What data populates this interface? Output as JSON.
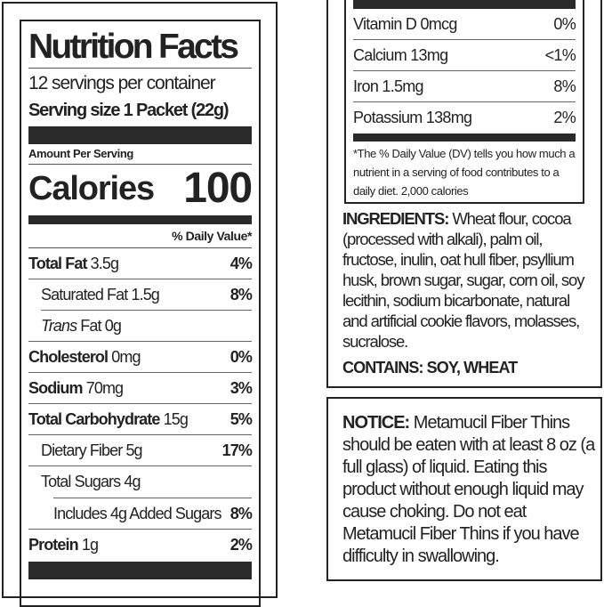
{
  "nutrition_facts": {
    "title": "Nutrition Facts",
    "servings": "12 servings per container",
    "serving_size": "Serving size 1 Packet (22g)",
    "amount_per_serving": "Amount Per Serving",
    "calories_label": "Calories",
    "calories_value": "100",
    "daily_value_header": "% Daily Value*",
    "rows": [
      {
        "name": "Total Fat",
        "amount": "3.5g",
        "dv": "4%"
      },
      {
        "name": "Saturated Fat",
        "amount": "1.5g",
        "dv": "8%"
      },
      {
        "name": "Trans",
        "name_rest": "Fat",
        "amount": "0g",
        "dv": ""
      },
      {
        "name": "Cholesterol",
        "amount": "0mg",
        "dv": "0%"
      },
      {
        "name": "Sodium",
        "amount": "70mg",
        "dv": "3%"
      },
      {
        "name": "Total Carbohydrate",
        "amount": "15g",
        "dv": "5%"
      },
      {
        "name": "Dietary Fiber",
        "amount": "5g",
        "dv": "17%"
      },
      {
        "name": "Total Sugars",
        "amount": "4g",
        "dv": ""
      },
      {
        "name": "Includes 4g Added Sugars",
        "amount": "",
        "dv": "8%"
      },
      {
        "name": "Protein",
        "amount": "1g",
        "dv": "2%"
      }
    ],
    "vitamins": [
      {
        "label": "Vitamin D 0mcg",
        "dv": "0%"
      },
      {
        "label": "Calcium 13mg",
        "dv": "<1%"
      },
      {
        "label": "Iron 1.5mg",
        "dv": "8%"
      },
      {
        "label": "Potassium 138mg",
        "dv": "2%"
      }
    ],
    "footnote": "*The % Daily Value (DV) tells you how much a nutrient in a serving of food contributes to a daily diet. 2,000 calories"
  },
  "ingredients": {
    "label": "INGREDIENTS:",
    "text": "Wheat flour, cocoa (processed with alkali), palm oil, fructose, inulin, oat hull fiber, psyllium husk, brown sugar, sugar, corn oil, soy lecithin, sodium bicarbonate, natural and artificial cookie flavors, molasses, sucralose.",
    "contains": "CONTAINS: SOY, WHEAT"
  },
  "notice": {
    "label": "NOTICE:",
    "text": "Metamucil Fiber Thins should be eaten with at least 8 oz (a full glass) of liquid. Eating this product without enough liquid may cause choking. Do not eat Metamucil Fiber Thins if you have difficulty in swallowing."
  }
}
